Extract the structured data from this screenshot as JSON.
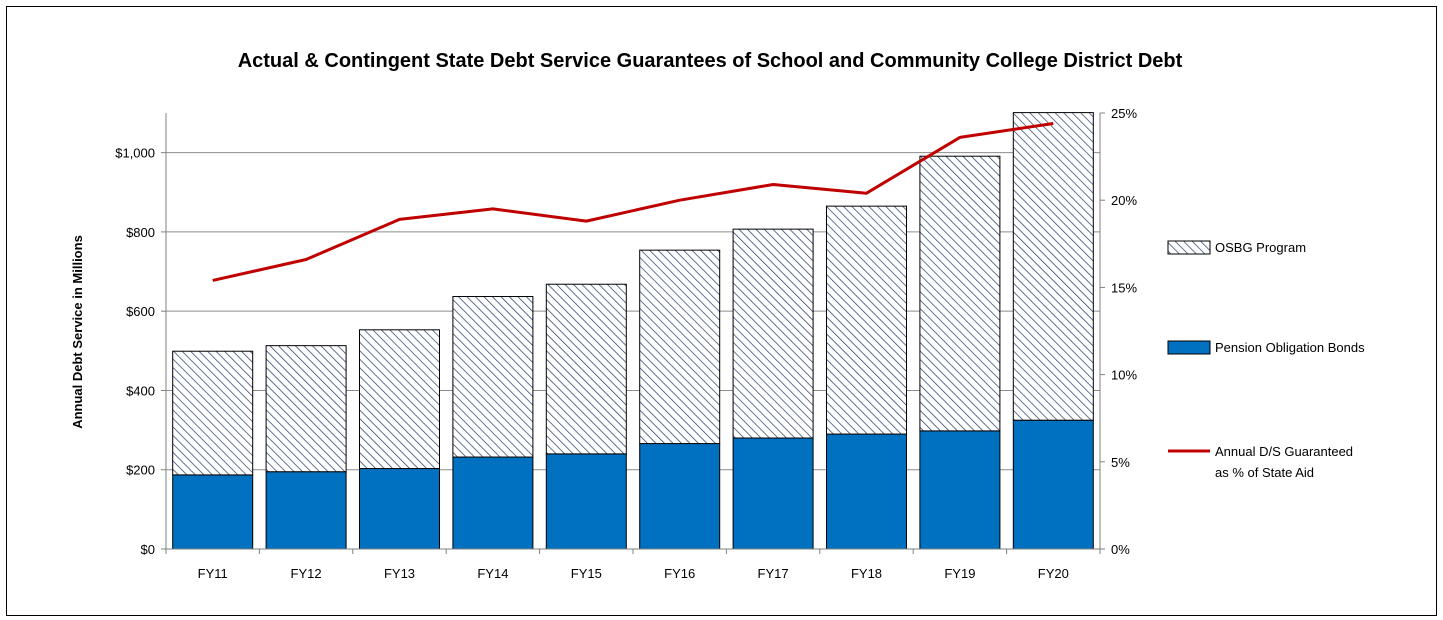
{
  "chart_data": {
    "type": "bar",
    "stacked": true,
    "title": "Actual & Contingent State Debt Service Guarantees of School and Community College District Debt",
    "ylabel": "Annual Debt Service in Millions",
    "y2label": "",
    "xlabel": "",
    "categories": [
      "FY11",
      "FY12",
      "FY13",
      "FY14",
      "FY15",
      "FY16",
      "FY17",
      "FY18",
      "FY19",
      "FY20"
    ],
    "ylim": [
      0,
      1100
    ],
    "y_ticks": [
      "$0",
      "$200",
      "$400",
      "$600",
      "$800",
      "$1,000"
    ],
    "y_tick_values": [
      0,
      200,
      400,
      600,
      800,
      1000
    ],
    "y2lim": [
      0,
      25
    ],
    "y2_ticks": [
      "0%",
      "5%",
      "10%",
      "15%",
      "20%",
      "25%"
    ],
    "y2_tick_values": [
      0,
      5,
      10,
      15,
      20,
      25
    ],
    "grid": true,
    "legend_position": "right",
    "series": [
      {
        "name": "Pension Obligation Bonds",
        "kind": "bar",
        "axis": "left",
        "color": "#0070C0",
        "values": [
          187,
          195,
          203,
          232,
          240,
          266,
          280,
          290,
          298,
          325
        ]
      },
      {
        "name": "OSBG Program",
        "kind": "bar",
        "axis": "left",
        "pattern": "diagonal-hatch",
        "color": "#1F3864",
        "values": [
          312,
          318,
          350,
          405,
          428,
          488,
          527,
          575,
          693,
          776
        ]
      },
      {
        "name": "Annual D/S Guaranteed as % of State Aid",
        "label_lines": [
          "Annual D/S Guaranteed",
          "as % of State Aid"
        ],
        "kind": "line",
        "axis": "right",
        "color": "#C00000",
        "values": [
          15.4,
          16.6,
          18.9,
          19.5,
          18.8,
          20.0,
          20.9,
          20.4,
          23.6,
          24.4
        ]
      }
    ]
  }
}
